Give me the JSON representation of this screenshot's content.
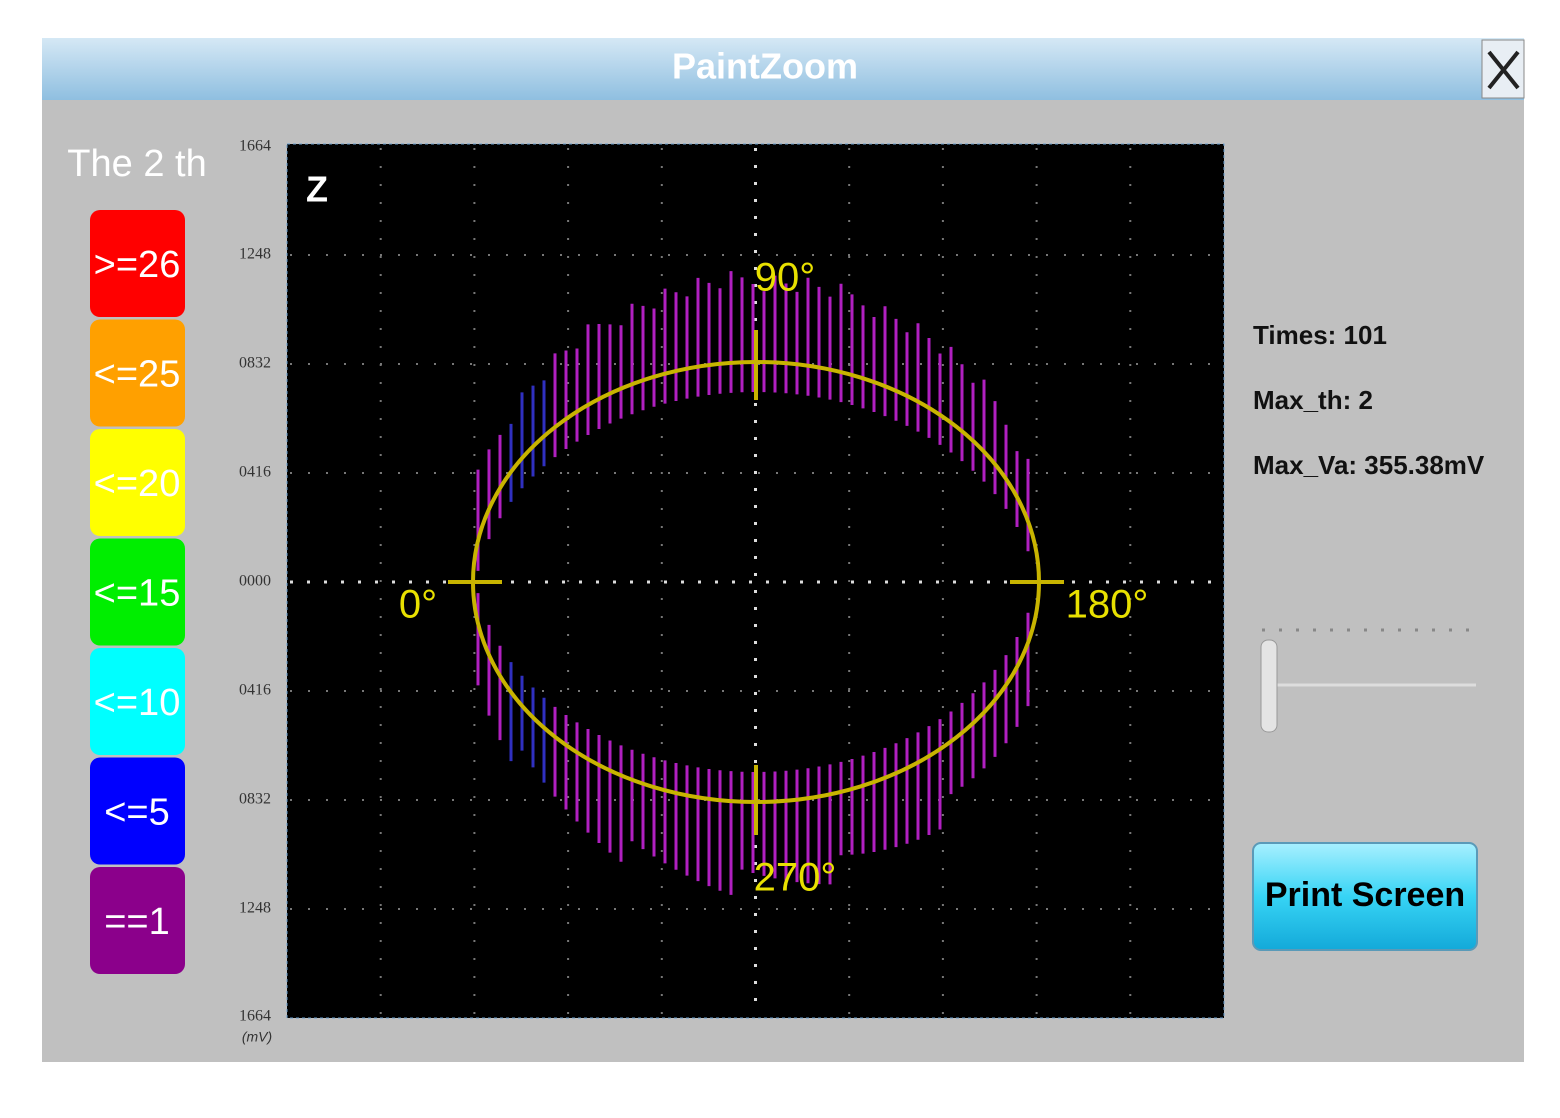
{
  "window": {
    "title": "PaintZoom"
  },
  "legend": {
    "title": "The 2 th",
    "items": [
      ">=26",
      "<=25",
      "<=20",
      "<=15",
      "<=10",
      "<=5",
      "==1"
    ]
  },
  "plot": {
    "channel": "Z",
    "y_axis_labels": [
      "1664",
      "1248",
      "0832",
      "0416",
      "0000",
      "0416",
      "0832",
      "1248",
      "1664"
    ],
    "unit": "(mV)",
    "phase_labels": [
      "0°",
      "90°",
      "180°",
      "270°"
    ]
  },
  "info": [
    "Times: 101",
    "Max_th: 2",
    "Max_Va: 355.38mV"
  ],
  "button": "Print Screen"
}
